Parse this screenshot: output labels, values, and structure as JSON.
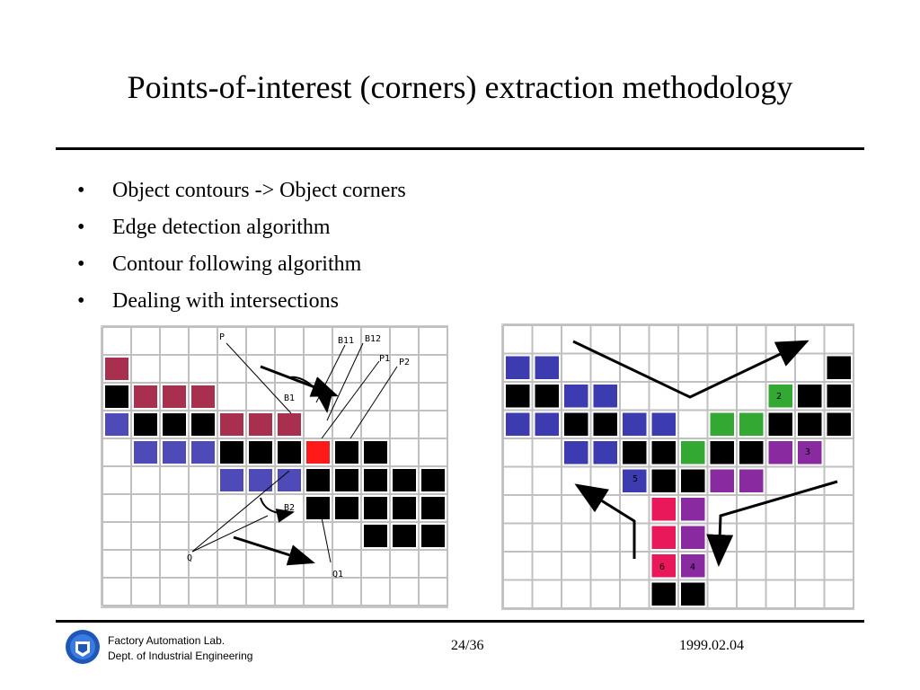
{
  "slide": {
    "title": "Points-of-interest (corners) extraction methodology",
    "bullets": [
      "Object contours -> Object corners",
      "Edge detection algorithm",
      "Contour following algorithm",
      "Dealing with intersections"
    ]
  },
  "figure_left": {
    "labels": {
      "p": "P",
      "b11": "B11",
      "b12": "B12",
      "p1": "P1",
      "p2": "P2",
      "b1": "B1",
      "b2": "B2",
      "q": "Q",
      "q1": "Q1"
    },
    "colors": {
      "black": "#000000",
      "red": "#ff1a1a",
      "purple_red": "#a8304e",
      "blue_purple": "#4e4ab8"
    }
  },
  "figure_right": {
    "labels": {
      "n2": "2",
      "n3": "3",
      "n4": "4",
      "n5": "5",
      "n6": "6"
    },
    "colors": {
      "blue": "#3c3cb0",
      "green": "#33a833",
      "purple": "#8a2aa0",
      "pink": "#e8185a"
    }
  },
  "footer": {
    "lab": "Factory Automation Lab.",
    "dept": "Dept. of Industrial Engineering",
    "page": "24/36",
    "date": "1999.02.04"
  }
}
